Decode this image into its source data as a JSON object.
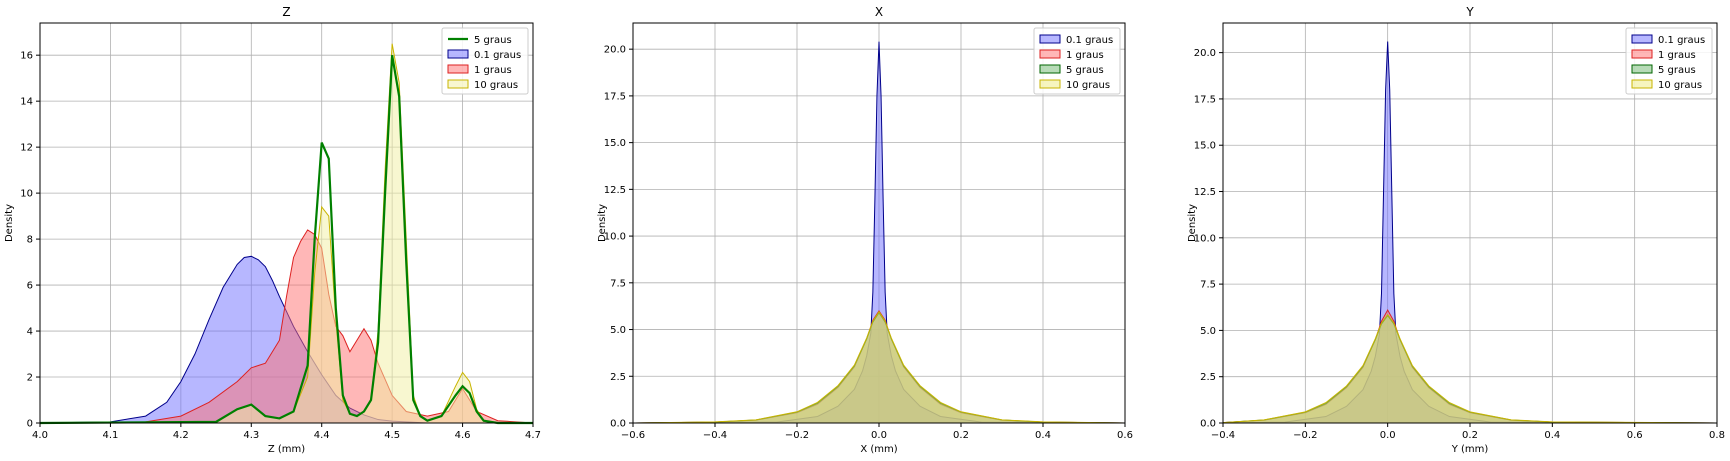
{
  "figure": {
    "background": "#ffffff"
  },
  "chart_data": [
    {
      "type": "area",
      "title": "Z",
      "xlabel": "Z (mm)",
      "ylabel": "Density",
      "xlim": [
        4.0,
        4.7
      ],
      "ylim": [
        0,
        17.4
      ],
      "xticks": [
        4.0,
        4.1,
        4.2,
        4.3,
        4.4,
        4.5,
        4.6,
        4.7
      ],
      "xtick_labels": [
        "4.0",
        "4.1",
        "4.2",
        "4.3",
        "4.4",
        "4.5",
        "4.6",
        "4.7"
      ],
      "yticks": [
        0,
        2,
        4,
        6,
        8,
        10,
        12,
        14,
        16
      ],
      "ytick_labels": [
        "0",
        "2",
        "4",
        "6",
        "8",
        "10",
        "12",
        "14",
        "16"
      ],
      "grid": true,
      "legend_position": "top-right",
      "legend": [
        "5 graus",
        "0.1 graus",
        "1 graus",
        "10 graus"
      ],
      "series": [
        {
          "name": "0.1 graus",
          "style": "filled",
          "line_color": "#00008b",
          "fill_color": "#7070ff",
          "x": [
            4.0,
            4.1,
            4.15,
            4.18,
            4.2,
            4.22,
            4.24,
            4.26,
            4.28,
            4.29,
            4.3,
            4.31,
            4.32,
            4.33,
            4.34,
            4.36,
            4.38,
            4.4,
            4.42,
            4.44,
            4.46,
            4.48,
            4.5,
            4.55,
            4.7
          ],
          "y": [
            0,
            0.05,
            0.3,
            0.9,
            1.8,
            3.0,
            4.5,
            5.9,
            6.9,
            7.2,
            7.25,
            7.1,
            6.8,
            6.2,
            5.5,
            4.2,
            3.1,
            2.1,
            1.2,
            0.65,
            0.35,
            0.15,
            0.08,
            0,
            0
          ]
        },
        {
          "name": "1 graus",
          "style": "filled",
          "line_color": "#dd2222",
          "fill_color": "#ff7070",
          "x": [
            4.0,
            4.15,
            4.2,
            4.24,
            4.28,
            4.3,
            4.32,
            4.34,
            4.35,
            4.36,
            4.37,
            4.38,
            4.39,
            4.4,
            4.41,
            4.42,
            4.43,
            4.44,
            4.45,
            4.46,
            4.47,
            4.48,
            4.5,
            4.52,
            4.55,
            4.58,
            4.6,
            4.62,
            4.65,
            4.7
          ],
          "y": [
            0,
            0.05,
            0.3,
            0.9,
            1.8,
            2.4,
            2.6,
            3.6,
            5.5,
            7.2,
            7.9,
            8.4,
            8.2,
            7.6,
            5.6,
            4.2,
            3.8,
            3.1,
            3.6,
            4.1,
            3.6,
            2.6,
            1.2,
            0.5,
            0.3,
            0.5,
            1.5,
            0.5,
            0.1,
            0
          ]
        },
        {
          "name": "10 graus",
          "style": "filled",
          "line_color": "#c8b400",
          "fill_color": "#f2f0a2",
          "x": [
            4.0,
            4.25,
            4.28,
            4.3,
            4.32,
            4.34,
            4.36,
            4.38,
            4.39,
            4.4,
            4.41,
            4.42,
            4.43,
            4.44,
            4.45,
            4.46,
            4.47,
            4.48,
            4.49,
            4.5,
            4.51,
            4.52,
            4.53,
            4.54,
            4.55,
            4.57,
            4.59,
            4.6,
            4.61,
            4.62,
            4.63,
            4.65,
            4.7
          ],
          "y": [
            0,
            0.05,
            0.6,
            0.8,
            0.3,
            0.2,
            0.5,
            2.0,
            6.5,
            9.4,
            9.0,
            4.5,
            1.0,
            0.4,
            0.3,
            0.5,
            1.0,
            4.0,
            11.0,
            16.5,
            14.8,
            8.0,
            1.2,
            0.3,
            0.1,
            0.3,
            1.6,
            2.2,
            1.8,
            0.6,
            0.1,
            0,
            0
          ]
        },
        {
          "name": "5 graus",
          "style": "line",
          "line_color": "#008000",
          "x": [
            4.0,
            4.25,
            4.28,
            4.3,
            4.32,
            4.34,
            4.36,
            4.38,
            4.39,
            4.4,
            4.41,
            4.42,
            4.43,
            4.44,
            4.45,
            4.46,
            4.47,
            4.48,
            4.49,
            4.5,
            4.51,
            4.52,
            4.53,
            4.54,
            4.55,
            4.57,
            4.59,
            4.6,
            4.61,
            4.62,
            4.63,
            4.65,
            4.7
          ],
          "y": [
            0,
            0.05,
            0.6,
            0.8,
            0.3,
            0.2,
            0.5,
            2.5,
            8.0,
            12.2,
            11.5,
            5.0,
            1.2,
            0.4,
            0.3,
            0.5,
            1.0,
            3.5,
            10.0,
            16.0,
            14.2,
            7.0,
            1.0,
            0.3,
            0.1,
            0.3,
            1.2,
            1.6,
            1.3,
            0.5,
            0.1,
            0,
            0
          ]
        }
      ]
    },
    {
      "type": "area",
      "title": "X",
      "xlabel": "X (mm)",
      "ylabel": "Density",
      "xlim": [
        -0.6,
        0.6
      ],
      "ylim": [
        0,
        21.4
      ],
      "xticks": [
        -0.6,
        -0.4,
        -0.2,
        0.0,
        0.2,
        0.4,
        0.6
      ],
      "xtick_labels": [
        "−0.6",
        "−0.4",
        "−0.2",
        "0.0",
        "0.2",
        "0.4",
        "0.6"
      ],
      "yticks": [
        0,
        2.5,
        5,
        7.5,
        10,
        12.5,
        15,
        17.5,
        20
      ],
      "ytick_labels": [
        "0.0",
        "2.5",
        "5.0",
        "7.5",
        "10.0",
        "12.5",
        "15.0",
        "17.5",
        "20.0"
      ],
      "grid": true,
      "legend_position": "top-right",
      "legend": [
        "0.1 graus",
        "1 graus",
        "5 graus",
        "10 graus"
      ],
      "series": [
        {
          "name": "0.1 graus",
          "style": "filled",
          "line_color": "#00008b",
          "fill_color": "#7070ff",
          "x": [
            -0.6,
            -0.25,
            -0.15,
            -0.1,
            -0.06,
            -0.04,
            -0.03,
            -0.02,
            -0.015,
            -0.01,
            -0.005,
            0,
            0.005,
            0.01,
            0.015,
            0.02,
            0.03,
            0.04,
            0.06,
            0.1,
            0.15,
            0.25,
            0.6
          ],
          "y": [
            0,
            0.05,
            0.35,
            0.9,
            1.8,
            2.8,
            3.6,
            4.8,
            7.0,
            12.0,
            17.5,
            20.4,
            17.5,
            12.0,
            7.0,
            4.8,
            3.6,
            2.8,
            1.8,
            0.9,
            0.35,
            0.05,
            0
          ]
        },
        {
          "name": "1 graus",
          "style": "filled",
          "line_color": "#dd2222",
          "fill_color": "#ff7070",
          "x": [
            -0.6,
            -0.4,
            -0.3,
            -0.2,
            -0.15,
            -0.1,
            -0.06,
            -0.03,
            -0.015,
            0,
            0.015,
            0.03,
            0.06,
            0.1,
            0.15,
            0.2,
            0.3,
            0.4,
            0.6
          ],
          "y": [
            0,
            0.05,
            0.15,
            0.55,
            1.0,
            1.9,
            3.0,
            4.5,
            5.5,
            6.0,
            5.5,
            4.5,
            3.0,
            1.9,
            1.0,
            0.55,
            0.15,
            0.05,
            0
          ]
        },
        {
          "name": "5 graus",
          "style": "filled",
          "line_color": "#006400",
          "fill_color": "#70b870",
          "x": [
            -0.6,
            -0.4,
            -0.3,
            -0.2,
            -0.15,
            -0.1,
            -0.06,
            -0.03,
            -0.015,
            0,
            0.015,
            0.03,
            0.06,
            0.1,
            0.15,
            0.2,
            0.3,
            0.4,
            0.6
          ],
          "y": [
            0,
            0.05,
            0.16,
            0.58,
            1.05,
            1.95,
            3.05,
            4.5,
            5.4,
            5.9,
            5.4,
            4.5,
            3.05,
            1.95,
            1.05,
            0.58,
            0.16,
            0.05,
            0
          ]
        },
        {
          "name": "10 graus",
          "style": "filled",
          "line_color": "#c8b400",
          "fill_color": "#eeec80",
          "x": [
            -0.6,
            -0.4,
            -0.3,
            -0.2,
            -0.15,
            -0.1,
            -0.06,
            -0.03,
            -0.015,
            0,
            0.015,
            0.03,
            0.06,
            0.1,
            0.15,
            0.2,
            0.3,
            0.4,
            0.6
          ],
          "y": [
            0,
            0.06,
            0.17,
            0.6,
            1.1,
            2.0,
            3.1,
            4.55,
            5.45,
            5.95,
            5.45,
            4.55,
            3.1,
            2.0,
            1.1,
            0.6,
            0.17,
            0.06,
            0
          ]
        }
      ]
    },
    {
      "type": "area",
      "title": "Y",
      "xlabel": "Y (mm)",
      "ylabel": "Density",
      "xlim": [
        -0.4,
        0.8
      ],
      "ylim": [
        0,
        21.6
      ],
      "xticks": [
        -0.4,
        -0.2,
        0.0,
        0.2,
        0.4,
        0.6,
        0.8
      ],
      "xtick_labels": [
        "−0.4",
        "−0.2",
        "0.0",
        "0.2",
        "0.4",
        "0.6",
        "0.8"
      ],
      "yticks": [
        0,
        2.5,
        5,
        7.5,
        10,
        12.5,
        15,
        17.5,
        20
      ],
      "ytick_labels": [
        "0.0",
        "2.5",
        "5.0",
        "7.5",
        "10.0",
        "12.5",
        "15.0",
        "17.5",
        "20.0"
      ],
      "grid": true,
      "legend_position": "top-right",
      "legend": [
        "0.1 graus",
        "1 graus",
        "5 graus",
        "10 graus"
      ],
      "series": [
        {
          "name": "0.1 graus",
          "style": "filled",
          "line_color": "#00008b",
          "fill_color": "#7070ff",
          "x": [
            -0.4,
            -0.25,
            -0.15,
            -0.1,
            -0.06,
            -0.04,
            -0.03,
            -0.02,
            -0.015,
            -0.01,
            -0.005,
            0,
            0.005,
            0.01,
            0.015,
            0.02,
            0.03,
            0.04,
            0.06,
            0.1,
            0.15,
            0.25,
            0.8
          ],
          "y": [
            0,
            0.05,
            0.35,
            0.9,
            1.8,
            2.8,
            3.6,
            4.8,
            7.0,
            12.5,
            18.0,
            20.6,
            18.0,
            12.5,
            7.0,
            4.8,
            3.6,
            2.8,
            1.8,
            0.9,
            0.35,
            0.05,
            0
          ]
        },
        {
          "name": "1 graus",
          "style": "filled",
          "line_color": "#dd2222",
          "fill_color": "#ff7070",
          "x": [
            -0.4,
            -0.3,
            -0.2,
            -0.15,
            -0.1,
            -0.06,
            -0.03,
            -0.015,
            0,
            0.015,
            0.03,
            0.06,
            0.1,
            0.15,
            0.2,
            0.3,
            0.4,
            0.8
          ],
          "y": [
            0.02,
            0.15,
            0.55,
            1.0,
            1.9,
            3.0,
            4.5,
            5.5,
            6.1,
            5.5,
            4.5,
            3.0,
            1.9,
            1.0,
            0.55,
            0.15,
            0.05,
            0
          ]
        },
        {
          "name": "5 graus",
          "style": "filled",
          "line_color": "#006400",
          "fill_color": "#70b870",
          "x": [
            -0.4,
            -0.3,
            -0.2,
            -0.15,
            -0.1,
            -0.06,
            -0.03,
            -0.015,
            0,
            0.015,
            0.03,
            0.06,
            0.1,
            0.15,
            0.2,
            0.3,
            0.4,
            0.8
          ],
          "y": [
            0.02,
            0.16,
            0.58,
            1.05,
            1.95,
            3.05,
            4.5,
            5.35,
            5.8,
            5.35,
            4.5,
            3.05,
            1.95,
            1.05,
            0.58,
            0.16,
            0.05,
            0
          ]
        },
        {
          "name": "10 graus",
          "style": "filled",
          "line_color": "#c8b400",
          "fill_color": "#eeec80",
          "x": [
            -0.4,
            -0.3,
            -0.2,
            -0.15,
            -0.1,
            -0.06,
            -0.03,
            -0.015,
            0,
            0.015,
            0.03,
            0.06,
            0.1,
            0.15,
            0.2,
            0.3,
            0.4,
            0.8
          ],
          "y": [
            0.02,
            0.17,
            0.6,
            1.1,
            2.0,
            3.1,
            4.55,
            5.4,
            5.85,
            5.4,
            4.55,
            3.1,
            2.0,
            1.1,
            0.6,
            0.17,
            0.06,
            0
          ]
        }
      ]
    }
  ]
}
